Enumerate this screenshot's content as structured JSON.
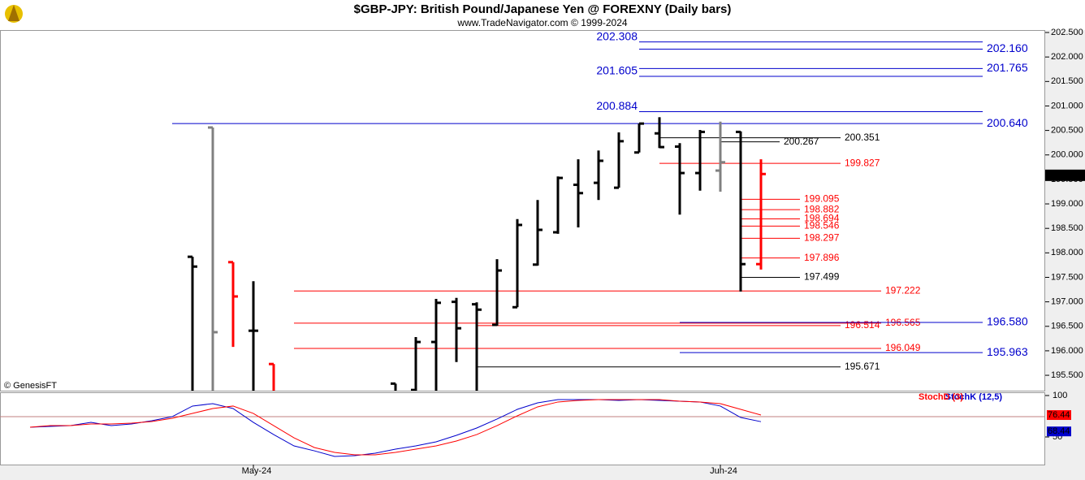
{
  "chart_data": {
    "type": "ohlc",
    "title": "$GBP-JPY:  British Pound/Japanese Yen @ FOREXNY  (Daily bars)",
    "subtitle": "www.TradeNavigator.com © 1999-2024",
    "watermark": "© GenesisFT",
    "categories": [
      null,
      null,
      null,
      null,
      null,
      null,
      null,
      null,
      null,
      null,
      null,
      "May-24",
      null,
      null,
      null,
      null,
      null,
      null,
      null,
      null,
      null,
      null,
      null,
      null,
      null,
      null,
      null,
      null,
      null,
      null,
      null,
      null,
      null,
      null,
      "Jun-24",
      null,
      null
    ],
    "open": [
      null,
      null,
      null,
      null,
      null,
      null,
      null,
      null,
      197.92,
      200.56,
      197.81,
      196.41,
      195.73,
      null,
      null,
      null,
      null,
      null,
      195.33,
      195.2,
      196.18,
      197.0,
      196.95,
      196.53,
      196.89,
      197.76,
      198.42,
      199.39,
      199.43,
      199.33,
      200.05,
      200.44,
      200.17,
      199.63,
      199.68,
      200.47,
      197.77
    ],
    "high": [
      null,
      null,
      null,
      null,
      null,
      null,
      null,
      null,
      197.92,
      200.56,
      197.81,
      197.42,
      195.73,
      null,
      null,
      null,
      null,
      null,
      195.33,
      196.28,
      197.06,
      197.08,
      196.99,
      197.87,
      198.69,
      199.08,
      199.56,
      199.91,
      200.09,
      200.46,
      200.64,
      200.77,
      200.24,
      200.51,
      200.68,
      200.48,
      199.91
    ],
    "low": [
      null,
      null,
      null,
      null,
      null,
      null,
      null,
      null,
      195.0,
      195.0,
      196.08,
      195.0,
      195.0,
      null,
      null,
      null,
      null,
      null,
      195.0,
      195.0,
      195.0,
      195.77,
      195.0,
      196.51,
      196.89,
      197.74,
      198.39,
      198.52,
      199.08,
      199.33,
      200.05,
      200.14,
      198.78,
      199.27,
      199.25,
      197.21,
      197.66
    ],
    "close": [
      null,
      null,
      null,
      null,
      null,
      null,
      null,
      null,
      197.72,
      196.38,
      197.11,
      196.41,
      195.1,
      null,
      null,
      null,
      null,
      null,
      195.1,
      196.18,
      196.98,
      196.46,
      196.84,
      197.64,
      198.57,
      198.47,
      199.53,
      199.22,
      199.88,
      200.28,
      200.64,
      200.16,
      199.63,
      200.47,
      199.85,
      197.77,
      199.61
    ],
    "colors": [
      null,
      null,
      null,
      null,
      null,
      null,
      null,
      null,
      "#000000",
      "#808080",
      "#ff0000",
      "#000000",
      "#ff0000",
      null,
      null,
      null,
      null,
      null,
      "#000000",
      "#000000",
      "#000000",
      "#000000",
      "#000000",
      "#000000",
      "#000000",
      "#000000",
      "#000000",
      "#000000",
      "#000000",
      "#000000",
      "#000000",
      "#000000",
      "#000000",
      "#000000",
      "#808080",
      "#000000",
      "#ff0000"
    ],
    "ylim": [
      195.186,
      202.55
    ],
    "yticks": [
      {
        "value": 195.5,
        "label": "195.500"
      },
      {
        "value": 196,
        "label": "196.000"
      },
      {
        "value": 196.5,
        "label": "196.500"
      },
      {
        "value": 197,
        "label": "197.000"
      },
      {
        "value": 197.5,
        "label": "197.500"
      },
      {
        "value": 198,
        "label": "198.000"
      },
      {
        "value": 198.5,
        "label": "198.500"
      },
      {
        "value": 199,
        "label": "199.000"
      },
      {
        "value": 199.5,
        "label": "199.500"
      },
      {
        "value": 200,
        "label": "200.000"
      },
      {
        "value": 200.5,
        "label": "200.500"
      },
      {
        "value": 201,
        "label": "201.000"
      },
      {
        "value": 201.5,
        "label": "201.500"
      },
      {
        "value": 202,
        "label": "202.000"
      },
      {
        "value": 202.5,
        "label": "202.500"
      }
    ],
    "last_price": {
      "value": 199.584,
      "label": "199.584"
    },
    "levels": [
      {
        "value": 202.308,
        "label": "202.308",
        "color": "#0000cc"
      },
      {
        "value": 202.16,
        "label": "202.160",
        "color": "#0000cc"
      },
      {
        "value": 201.765,
        "label": "201.765",
        "color": "#0000cc"
      },
      {
        "value": 201.605,
        "label": "201.605",
        "color": "#0000cc"
      },
      {
        "value": 200.884,
        "label": "200.884",
        "color": "#0000cc"
      },
      {
        "value": 200.64,
        "label": "200.640",
        "color": "#0000cc"
      },
      {
        "value": 200.351,
        "label": "200.351",
        "color": "#000000"
      },
      {
        "value": 200.267,
        "label": "200.267",
        "color": "#000000"
      },
      {
        "value": 199.827,
        "label": "199.827",
        "color": "#ff0000"
      },
      {
        "value": 199.095,
        "label": "199.095",
        "color": "#ff0000"
      },
      {
        "value": 198.882,
        "label": "198.882",
        "color": "#ff0000"
      },
      {
        "value": 198.694,
        "label": "198.694",
        "color": "#ff0000"
      },
      {
        "value": 198.546,
        "label": "198.546",
        "color": "#ff0000"
      },
      {
        "value": 198.297,
        "label": "198.297",
        "color": "#ff0000"
      },
      {
        "value": 197.896,
        "label": "197.896",
        "color": "#ff0000"
      },
      {
        "value": 197.499,
        "label": "197.499",
        "color": "#000000"
      },
      {
        "value": 197.222,
        "label": "197.222",
        "color": "#ff0000"
      },
      {
        "value": 196.565,
        "label": "196.565",
        "color": "#ff0000"
      },
      {
        "value": 196.514,
        "label": "196.514",
        "color": "#ff0000"
      },
      {
        "value": 196.58,
        "label": "196.580",
        "color": "#0000cc"
      },
      {
        "value": 196.049,
        "label": "196.049",
        "color": "#ff0000"
      },
      {
        "value": 195.963,
        "label": "195.963",
        "color": "#0000cc"
      },
      {
        "value": 195.671,
        "label": "195.671",
        "color": "#000000"
      }
    ],
    "indicator": {
      "ylim": [
        16.7,
        103.9
      ],
      "yticks": [
        50,
        100
      ],
      "series": [
        {
          "name": "StochD (3)",
          "color": "#ff0000",
          "last_label": {
            "value": 76.44,
            "label": "76.44"
          },
          "values": [
            61.8,
            63.7,
            63.7,
            65.7,
            65.7,
            66.7,
            68.6,
            72.5,
            78.4,
            84.3,
            87.3,
            78.4,
            63.7,
            49,
            37.3,
            31.4,
            28.4,
            28.4,
            31.4,
            35.3,
            39.2,
            45.1,
            52.9,
            63.7,
            75.5,
            86.3,
            92.2,
            94.1,
            95.1,
            95.1,
            95.1,
            95.1,
            93.1,
            92.2,
            90.2,
            83.3,
            76.44
          ]
        },
        {
          "name": "StochK (12,5)",
          "color": "#0000cc",
          "last_label": {
            "value": 68.44,
            "label": "68.44"
          },
          "values": [
            61.8,
            62.7,
            63.7,
            67.6,
            63.7,
            65.7,
            69.6,
            74.5,
            87.3,
            90.2,
            84.3,
            67.6,
            52.9,
            39.2,
            33.3,
            26.5,
            27.5,
            30.4,
            35.3,
            39.2,
            44.1,
            52,
            60.8,
            71.6,
            83.3,
            91.2,
            95.1,
            95.1,
            95.1,
            94.1,
            95.1,
            94.1,
            93.1,
            92.2,
            87.3,
            73.5,
            68.44
          ]
        }
      ]
    }
  }
}
